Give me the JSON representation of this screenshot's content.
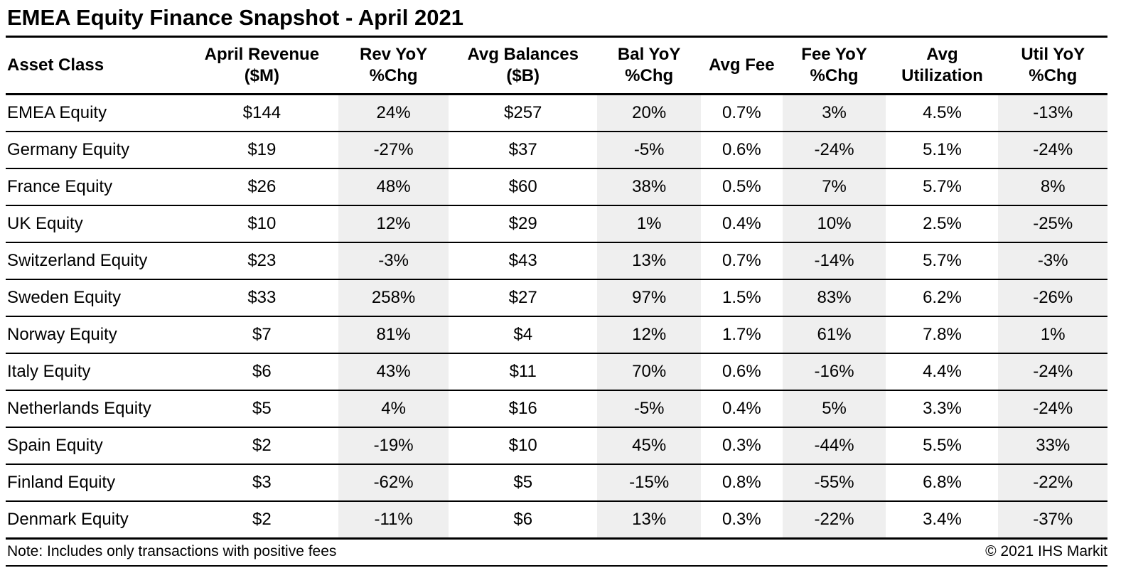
{
  "colors": {
    "shaded_column_bg": "#efefef",
    "border": "#000000",
    "text": "#000000",
    "background": "#ffffff"
  },
  "chart_data": {
    "type": "table",
    "title": "EMEA Equity Finance Snapshot - April 2021",
    "note": "Note: Includes only transactions with positive fees",
    "copyright": "© 2021 IHS Markit",
    "layout": {
      "grid": "horizontal rules only, no vertical rules",
      "shaded_columns": [
        "Rev YoY %Chg",
        "Bal YoY %Chg",
        "Fee YoY %Chg",
        "Util YoY %Chg"
      ]
    },
    "columns": [
      {
        "id": "asset-class",
        "label": "Asset Class",
        "line1": "Asset Class",
        "line2": "",
        "align": "left",
        "shaded": false,
        "width": "16.3%"
      },
      {
        "id": "april-revenue",
        "label": "April Revenue ($M)",
        "line1": "April Revenue",
        "line2": "($M)",
        "align": "center",
        "shaded": false,
        "width": "13.9%"
      },
      {
        "id": "rev-yoy",
        "label": "Rev YoY %Chg",
        "line1": "Rev YoY",
        "line2": "%Chg",
        "align": "center",
        "shaded": true,
        "width": "10.0%"
      },
      {
        "id": "avg-balances",
        "label": "Avg Balances ($B)",
        "line1": "Avg Balances",
        "line2": "($B)",
        "align": "center",
        "shaded": false,
        "width": "13.5%"
      },
      {
        "id": "bal-yoy",
        "label": "Bal YoY %Chg",
        "line1": "Bal YoY",
        "line2": "%Chg",
        "align": "center",
        "shaded": true,
        "width": "9.4%"
      },
      {
        "id": "avg-fee",
        "label": "Avg Fee",
        "line1": "Avg Fee",
        "line2": "",
        "align": "center",
        "shaded": false,
        "width": "7.4%"
      },
      {
        "id": "fee-yoy",
        "label": "Fee YoY %Chg",
        "line1": "Fee YoY",
        "line2": "%Chg",
        "align": "center",
        "shaded": true,
        "width": "9.4%"
      },
      {
        "id": "avg-utilization",
        "label": "Avg Utilization",
        "line1": "Avg",
        "line2": "Utilization",
        "align": "center",
        "shaded": false,
        "width": "10.2%"
      },
      {
        "id": "util-yoy",
        "label": "Util YoY %Chg",
        "line1": "Util YoY",
        "line2": "%Chg",
        "align": "center",
        "shaded": true,
        "width": "9.9%"
      }
    ],
    "rows": [
      [
        "EMEA Equity",
        "$144",
        "24%",
        "$257",
        "20%",
        "0.7%",
        "3%",
        "4.5%",
        "-13%"
      ],
      [
        "Germany Equity",
        "$19",
        "-27%",
        "$37",
        "-5%",
        "0.6%",
        "-24%",
        "5.1%",
        "-24%"
      ],
      [
        "France Equity",
        "$26",
        "48%",
        "$60",
        "38%",
        "0.5%",
        "7%",
        "5.7%",
        "8%"
      ],
      [
        "UK Equity",
        "$10",
        "12%",
        "$29",
        "1%",
        "0.4%",
        "10%",
        "2.5%",
        "-25%"
      ],
      [
        "Switzerland Equity",
        "$23",
        "-3%",
        "$43",
        "13%",
        "0.7%",
        "-14%",
        "5.7%",
        "-3%"
      ],
      [
        "Sweden Equity",
        "$33",
        "258%",
        "$27",
        "97%",
        "1.5%",
        "83%",
        "6.2%",
        "-26%"
      ],
      [
        "Norway Equity",
        "$7",
        "81%",
        "$4",
        "12%",
        "1.7%",
        "61%",
        "7.8%",
        "1%"
      ],
      [
        "Italy Equity",
        "$6",
        "43%",
        "$11",
        "70%",
        "0.6%",
        "-16%",
        "4.4%",
        "-24%"
      ],
      [
        "Netherlands Equity",
        "$5",
        "4%",
        "$16",
        "-5%",
        "0.4%",
        "5%",
        "3.3%",
        "-24%"
      ],
      [
        "Spain Equity",
        "$2",
        "-19%",
        "$10",
        "45%",
        "0.3%",
        "-44%",
        "5.5%",
        "33%"
      ],
      [
        "Finland Equity",
        "$3",
        "-62%",
        "$5",
        "-15%",
        "0.8%",
        "-55%",
        "6.8%",
        "-22%"
      ],
      [
        "Denmark Equity",
        "$2",
        "-11%",
        "$6",
        "13%",
        "0.3%",
        "-22%",
        "3.4%",
        "-37%"
      ]
    ]
  }
}
